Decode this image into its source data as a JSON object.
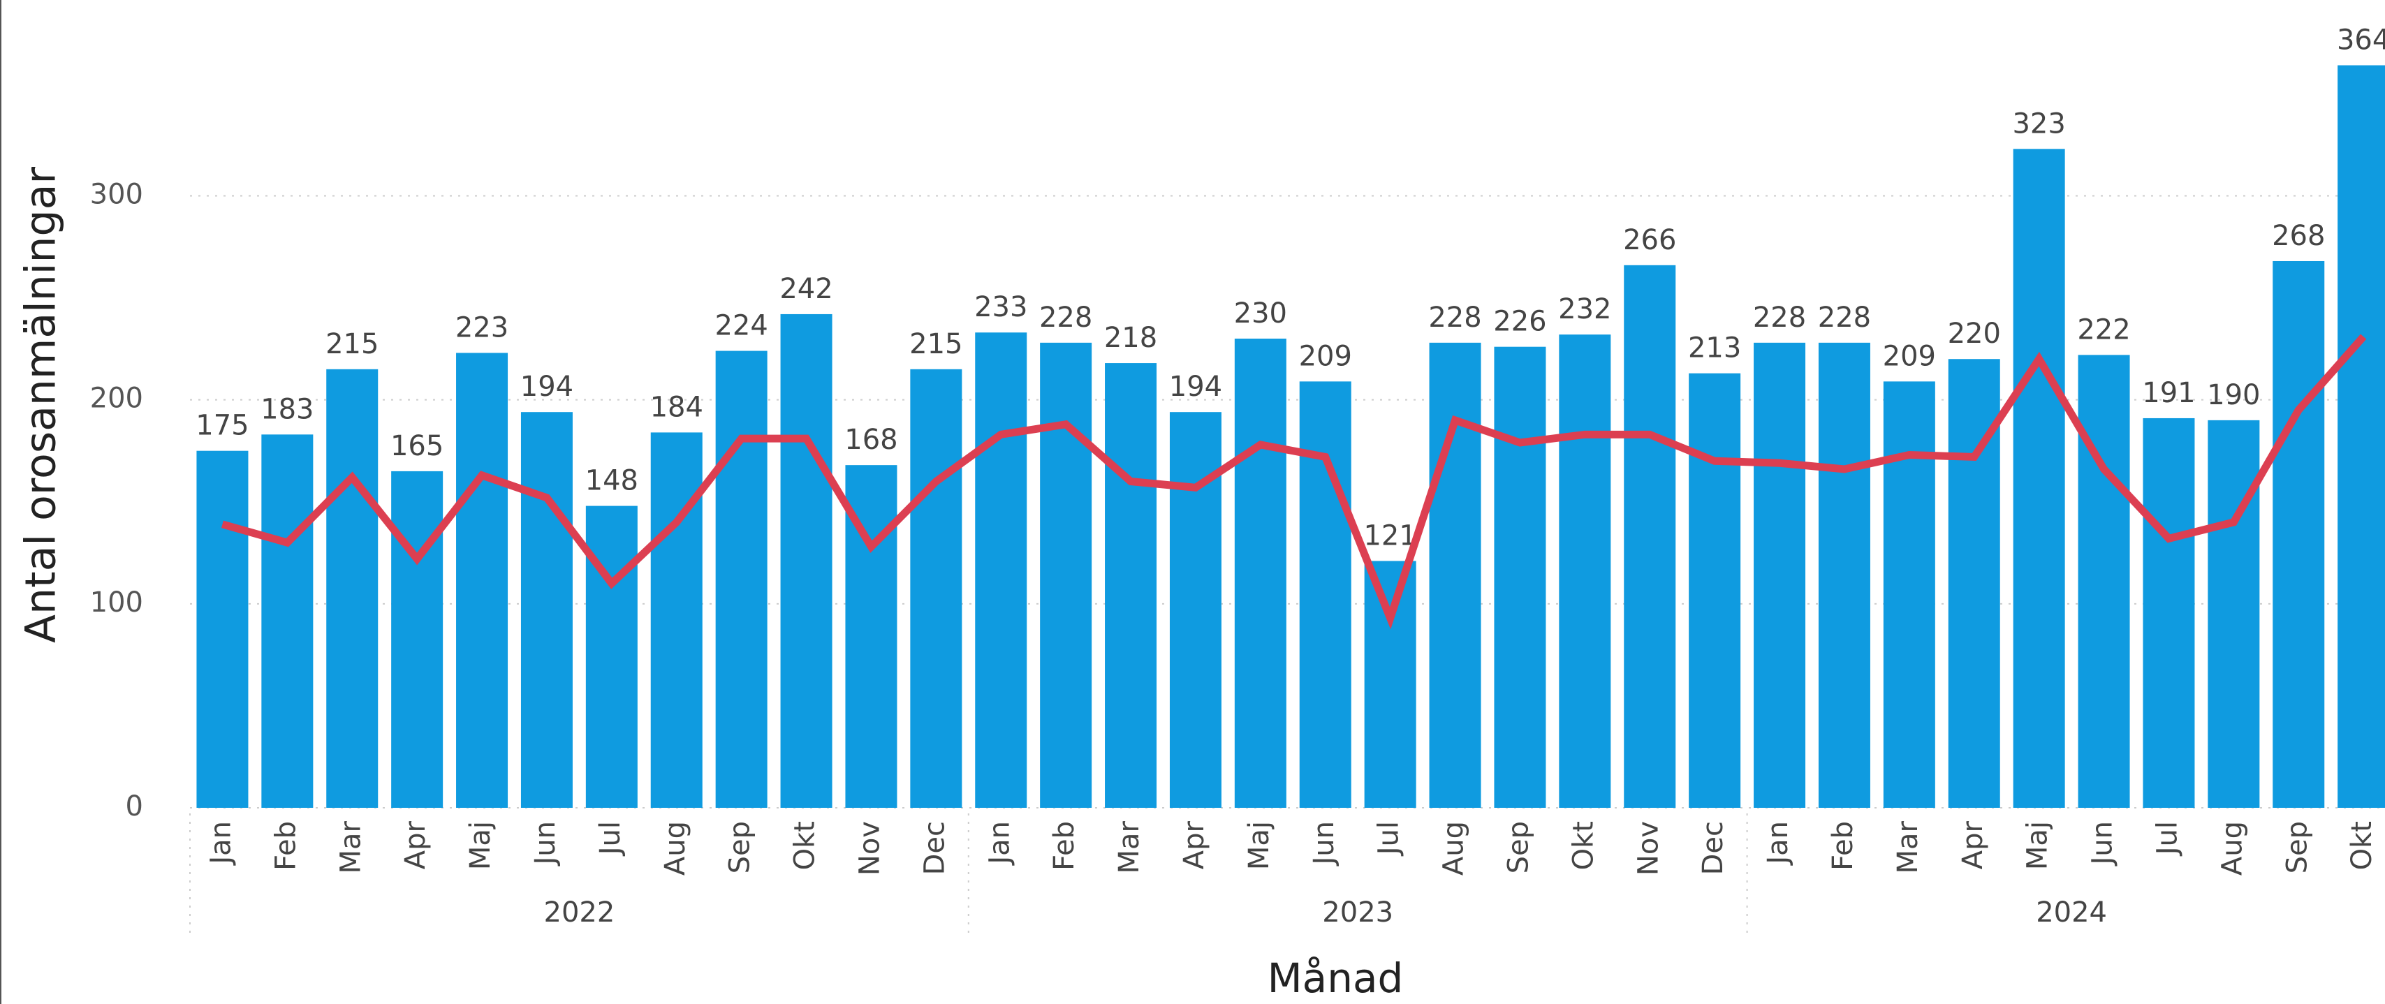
{
  "chart_data": {
    "type": "combo",
    "y_label": "Antal orosanmälningar",
    "x_label": "Månad",
    "groups": [
      {
        "name": "2022",
        "categories": [
          "Jan",
          "Feb",
          "Mar",
          "Apr",
          "Maj",
          "Jun",
          "Jul",
          "Aug",
          "Sep",
          "Okt",
          "Nov",
          "Dec"
        ]
      },
      {
        "name": "2023",
        "categories": [
          "Jan",
          "Feb",
          "Mar",
          "Apr",
          "Maj",
          "Jun",
          "Jul",
          "Aug",
          "Sep",
          "Okt",
          "Nov",
          "Dec"
        ]
      },
      {
        "name": "2024",
        "categories": [
          "Jan",
          "Feb",
          "Mar",
          "Apr",
          "Maj",
          "Jun",
          "Jul",
          "Aug",
          "Sep",
          "Okt"
        ]
      }
    ],
    "series": [
      {
        "type": "bar",
        "color": "#0f9be0",
        "values": [
          175,
          183,
          215,
          165,
          223,
          194,
          148,
          184,
          224,
          242,
          168,
          215,
          233,
          228,
          218,
          194,
          230,
          209,
          121,
          228,
          226,
          232,
          266,
          213,
          228,
          228,
          209,
          220,
          323,
          222,
          191,
          190,
          268,
          364
        ]
      },
      {
        "type": "line",
        "color": "#dc3f51",
        "values": [
          139,
          130,
          162,
          122,
          163,
          152,
          110,
          140,
          181,
          181,
          128,
          160,
          183,
          188,
          160,
          157,
          178,
          172,
          93,
          190,
          179,
          183,
          183,
          170,
          169,
          166,
          173,
          172,
          220,
          166,
          132,
          140,
          195,
          231
        ]
      }
    ],
    "ylim": [
      0,
      396
    ],
    "yticks": [
      0,
      100,
      200,
      300
    ],
    "grid": true
  }
}
